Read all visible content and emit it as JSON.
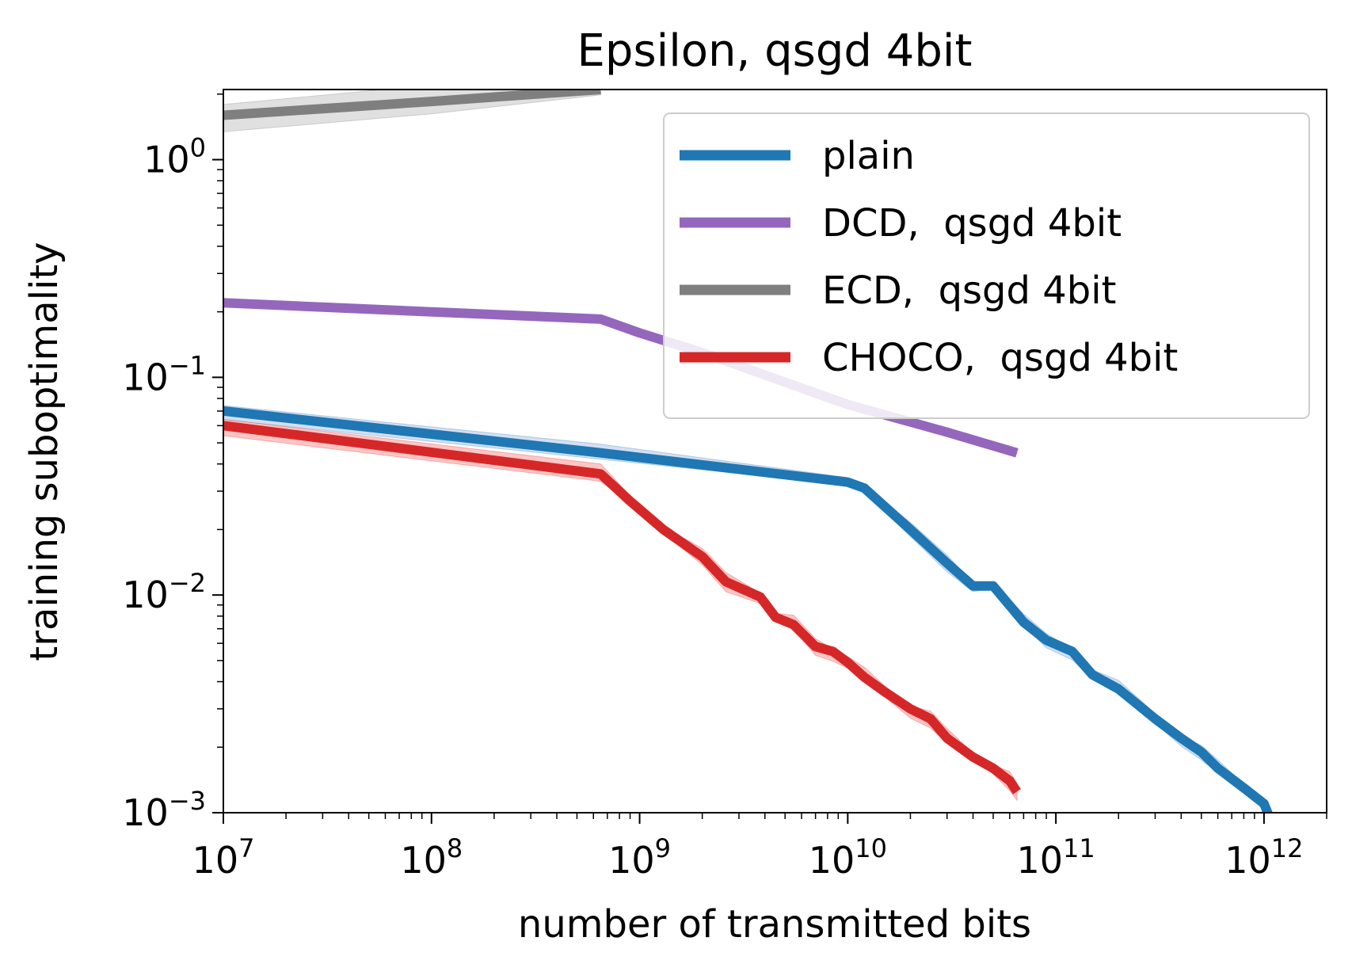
{
  "chart_data": {
    "type": "line",
    "title": "Epsilon, qsgd 4bit",
    "xlabel": "number of transmitted bits",
    "ylabel": "training suboptimality",
    "xscale": "log",
    "yscale": "log",
    "xlim": [
      10000000,
      2000000000000
    ],
    "ylim": [
      0.001,
      2.1
    ],
    "grid": false,
    "legend_position": "top-right",
    "x_ticks": [
      {
        "value": 10000000,
        "base": "10",
        "exp": "7"
      },
      {
        "value": 100000000,
        "base": "10",
        "exp": "8"
      },
      {
        "value": 1000000000,
        "base": "10",
        "exp": "9"
      },
      {
        "value": 10000000000,
        "base": "10",
        "exp": "10"
      },
      {
        "value": 100000000000,
        "base": "10",
        "exp": "11"
      },
      {
        "value": 1000000000000,
        "base": "10",
        "exp": "12"
      }
    ],
    "y_ticks": [
      {
        "value": 0.001,
        "base": "10",
        "exp": "−3"
      },
      {
        "value": 0.01,
        "base": "10",
        "exp": "−2"
      },
      {
        "value": 0.1,
        "base": "10",
        "exp": "−1"
      },
      {
        "value": 1,
        "base": "10",
        "exp": "0"
      }
    ],
    "series": [
      {
        "name": "plain",
        "color": "#1f77b4",
        "band_color": "#aec7e8",
        "x": [
          10000000,
          650000000,
          10000000000,
          12000000000,
          20000000000,
          30000000000,
          40000000000,
          50000000000,
          70000000000,
          90000000000,
          120000000000,
          150000000000,
          200000000000,
          300000000000,
          400000000000,
          500000000000,
          600000000000,
          800000000000,
          1000000000000,
          1050000000000
        ],
        "y": [
          0.07,
          0.045,
          0.033,
          0.031,
          0.02,
          0.014,
          0.011,
          0.011,
          0.0075,
          0.0062,
          0.0055,
          0.0043,
          0.0037,
          0.0027,
          0.0022,
          0.0019,
          0.0016,
          0.0013,
          0.0011,
          0.00098
        ],
        "spread": 0.06
      },
      {
        "name": "DCD,  qsgd 4bit",
        "color": "#9467bd",
        "band_color": "#c5b0d5",
        "x": [
          10000000,
          650000000,
          1000000000,
          2000000000,
          5000000000,
          10000000000,
          30000000000,
          65000000000
        ],
        "y": [
          0.22,
          0.185,
          0.16,
          0.13,
          0.095,
          0.075,
          0.056,
          0.045
        ],
        "spread": 0.02
      },
      {
        "name": "ECD,  qsgd 4bit",
        "color": "#7f7f7f",
        "band_color": "#c7c7c7",
        "x": [
          10000000,
          100000000,
          650000000
        ],
        "y": [
          1.6,
          1.85,
          2.1
        ],
        "spread": 0.12
      },
      {
        "name": "CHOCO,  qsgd 4bit",
        "color": "#d62728",
        "band_color": "#ff9896",
        "x": [
          10000000,
          650000000,
          900000000,
          1300000000,
          2000000000,
          2600000000,
          3800000000,
          4500000000,
          5500000000,
          7000000000,
          8500000000,
          10000000000,
          12000000000,
          15000000000,
          20000000000,
          25000000000,
          30000000000,
          40000000000,
          50000000000,
          60000000000,
          65000000000
        ],
        "y": [
          0.06,
          0.036,
          0.027,
          0.02,
          0.015,
          0.0115,
          0.0098,
          0.0079,
          0.0073,
          0.0058,
          0.0055,
          0.0049,
          0.0042,
          0.0036,
          0.003,
          0.0027,
          0.0022,
          0.0018,
          0.0016,
          0.0014,
          0.00125
        ],
        "spread": 0.07
      }
    ]
  }
}
